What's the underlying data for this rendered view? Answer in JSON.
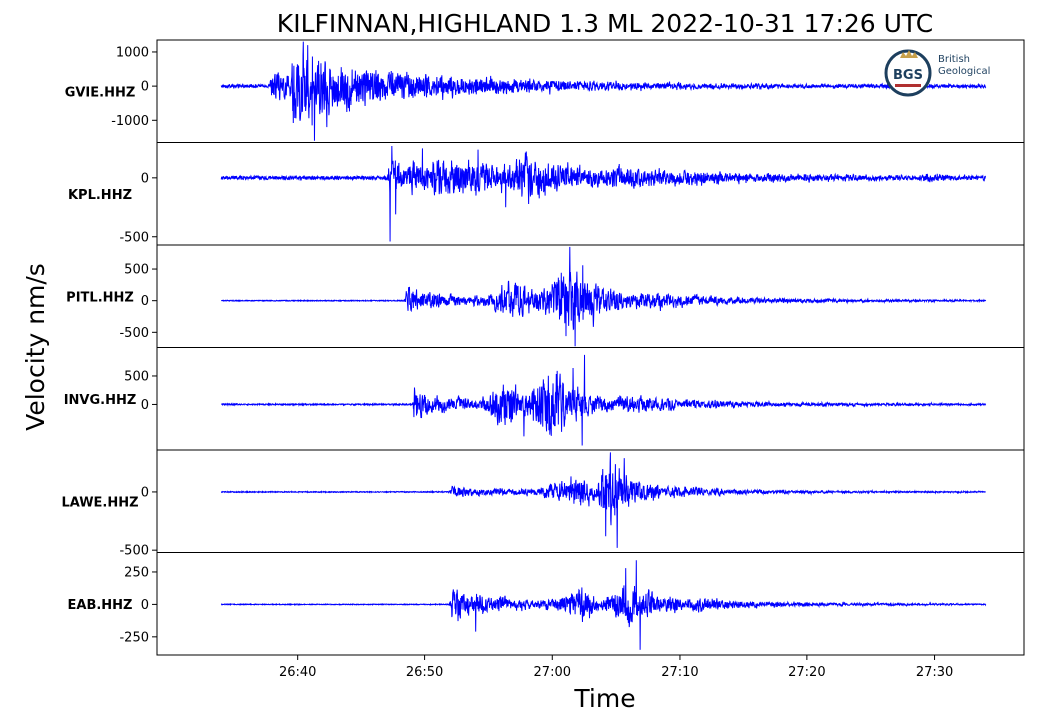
{
  "chart_data": {
    "type": "line",
    "title": "KILFINNAN,HIGHLAND 1.3 ML   2022-10-31 17:26 UTC",
    "xlabel": "Time",
    "ylabel": "Velocity nm/s",
    "x_tick_labels": [
      "26:40",
      "26:50",
      "27:00",
      "27:10",
      "27:20",
      "27:30"
    ],
    "x_ticks_minutes": [
      26.667,
      26.833,
      27.0,
      27.167,
      27.333,
      27.5
    ],
    "xlim_minutes": [
      26.483,
      27.617
    ],
    "trace_window_minutes": [
      26.567,
      27.567
    ],
    "line_color": "#0000ff",
    "grid": false,
    "series": [
      {
        "name": "GVIE.HHZ",
        "ylim": [
          -1650,
          1350
        ],
        "y_ticks": [
          1000,
          0,
          -1000
        ],
        "y_tick_labels": [
          "1000",
          "0",
          "-1000"
        ],
        "noise": 45,
        "onset_minutes": 26.633,
        "events": [
          {
            "t": 26.633,
            "amp": 330,
            "rise": 0.002,
            "decay": 0.25
          },
          {
            "t": 26.664,
            "amp": 850,
            "rise": 0.004,
            "decay": 0.032
          },
          {
            "t": 26.706,
            "amp": 300,
            "rise": 0.01,
            "decay": 0.2
          }
        ],
        "spikes": [
          {
            "t": 26.68,
            "v": 1200
          },
          {
            "t": 26.689,
            "v": -1600
          },
          {
            "t": 26.686,
            "v": -1150
          },
          {
            "t": 26.674,
            "v": 900
          }
        ]
      },
      {
        "name": "KPL.HHZ",
        "ylim": [
          -570,
          300
        ],
        "y_ticks": [
          0,
          -500
        ],
        "y_tick_labels": [
          "0",
          "-500"
        ],
        "noise": 16,
        "onset_minutes": 26.787,
        "events": [
          {
            "t": 26.787,
            "amp": 105,
            "rise": 0.002,
            "decay": 0.16
          },
          {
            "t": 26.86,
            "amp": 70,
            "rise": 0.02,
            "decay": 0.18
          },
          {
            "t": 26.965,
            "amp": 100,
            "rise": 0.012,
            "decay": 0.06
          },
          {
            "t": 27.1,
            "amp": 32,
            "rise": 0.02,
            "decay": 0.25
          },
          {
            "t": 27.495,
            "amp": 18,
            "rise": 0.01,
            "decay": 0.02
          }
        ],
        "spikes": [
          {
            "t": 26.788,
            "v": -540
          },
          {
            "t": 26.79,
            "v": 270
          },
          {
            "t": 26.795,
            "v": -310
          },
          {
            "t": 26.83,
            "v": 250
          },
          {
            "t": 26.903,
            "v": 240
          },
          {
            "t": 26.939,
            "v": -250
          }
        ]
      },
      {
        "name": "PITL.HHZ",
        "ylim": [
          -740,
          880
        ],
        "y_ticks": [
          500,
          0,
          -500
        ],
        "y_tick_labels": [
          "500",
          "0",
          "-500"
        ],
        "noise": 7,
        "onset_minutes": 26.81,
        "events": [
          {
            "t": 26.81,
            "amp": 160,
            "rise": 0.002,
            "decay": 0.08
          },
          {
            "t": 26.955,
            "amp": 230,
            "rise": 0.03,
            "decay": 0.04
          },
          {
            "t": 27.02,
            "amp": 380,
            "rise": 0.02,
            "decay": 0.06
          },
          {
            "t": 27.15,
            "amp": 55,
            "rise": 0.03,
            "decay": 0.22
          }
        ],
        "spikes": [
          {
            "t": 27.023,
            "v": 850
          },
          {
            "t": 27.03,
            "v": -720
          },
          {
            "t": 27.018,
            "v": -560
          },
          {
            "t": 27.04,
            "v": 560
          }
        ]
      },
      {
        "name": "INVG.HHZ",
        "ylim": [
          -800,
          1000
        ],
        "y_ticks": [
          500,
          0
        ],
        "y_tick_labels": [
          "500",
          "0"
        ],
        "noise": 11,
        "onset_minutes": 26.82,
        "events": [
          {
            "t": 26.82,
            "amp": 210,
            "rise": 0.002,
            "decay": 0.07
          },
          {
            "t": 26.94,
            "amp": 260,
            "rise": 0.02,
            "decay": 0.05
          },
          {
            "t": 27.0,
            "amp": 380,
            "rise": 0.02,
            "decay": 0.05
          },
          {
            "t": 27.12,
            "amp": 75,
            "rise": 0.03,
            "decay": 0.2
          }
        ],
        "spikes": [
          {
            "t": 27.042,
            "v": 870
          },
          {
            "t": 27.039,
            "v": -720
          },
          {
            "t": 27.027,
            "v": 640
          },
          {
            "t": 26.963,
            "v": -560
          }
        ]
      },
      {
        "name": "LAWE.HHZ",
        "ylim": [
          -520,
          360
        ],
        "y_ticks": [
          0,
          -500
        ],
        "y_tick_labels": [
          "0",
          "-500"
        ],
        "noise": 4,
        "onset_minutes": 26.87,
        "events": [
          {
            "t": 26.87,
            "amp": 40,
            "rise": 0.004,
            "decay": 0.12
          },
          {
            "t": 27.035,
            "amp": 85,
            "rise": 0.04,
            "decay": 0.05
          },
          {
            "t": 27.075,
            "amp": 180,
            "rise": 0.012,
            "decay": 0.035
          },
          {
            "t": 27.18,
            "amp": 18,
            "rise": 0.03,
            "decay": 0.2
          }
        ],
        "spikes": [
          {
            "t": 27.076,
            "v": 340
          },
          {
            "t": 27.085,
            "v": -480
          },
          {
            "t": 27.07,
            "v": -380
          },
          {
            "t": 27.094,
            "v": 290
          }
        ]
      },
      {
        "name": "EAB.HHZ",
        "ylim": [
          -390,
          400
        ],
        "y_ticks": [
          250,
          0,
          -250
        ],
        "y_tick_labels": [
          "250",
          "0",
          "-250"
        ],
        "noise": 3,
        "onset_minutes": 26.87,
        "events": [
          {
            "t": 26.87,
            "amp": 95,
            "rise": 0.003,
            "decay": 0.09
          },
          {
            "t": 27.04,
            "amp": 80,
            "rise": 0.03,
            "decay": 0.04
          },
          {
            "t": 27.095,
            "amp": 120,
            "rise": 0.012,
            "decay": 0.05
          },
          {
            "t": 27.2,
            "amp": 22,
            "rise": 0.03,
            "decay": 0.2
          }
        ],
        "spikes": [
          {
            "t": 27.11,
            "v": 340
          },
          {
            "t": 27.115,
            "v": -350
          },
          {
            "t": 27.096,
            "v": 280
          },
          {
            "t": 26.9,
            "v": -210
          }
        ]
      }
    ]
  },
  "logo": {
    "abbreviation": "BGS",
    "lines": [
      "British",
      "Geological"
    ]
  }
}
